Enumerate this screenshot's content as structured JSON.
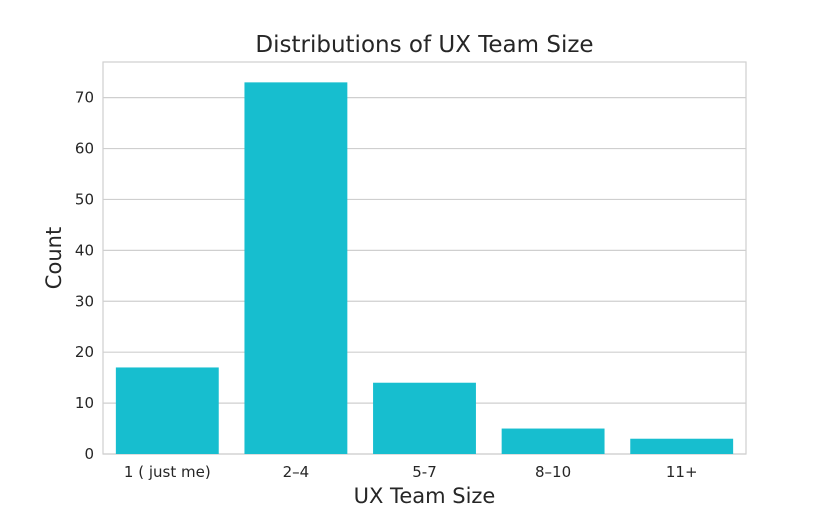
{
  "chart_data": {
    "type": "bar",
    "title": "Distributions of UX Team Size",
    "xlabel": "UX Team Size",
    "ylabel": "Count",
    "categories": [
      "1 ( just me)",
      "2–4",
      "5-7",
      "8–10",
      "11+"
    ],
    "values": [
      17,
      73,
      14,
      5,
      3
    ],
    "ylim": [
      0,
      77
    ],
    "yticks": [
      0,
      10,
      20,
      30,
      40,
      50,
      60,
      70
    ],
    "grid": true,
    "bar_color": "#17becf",
    "legend": "none"
  }
}
